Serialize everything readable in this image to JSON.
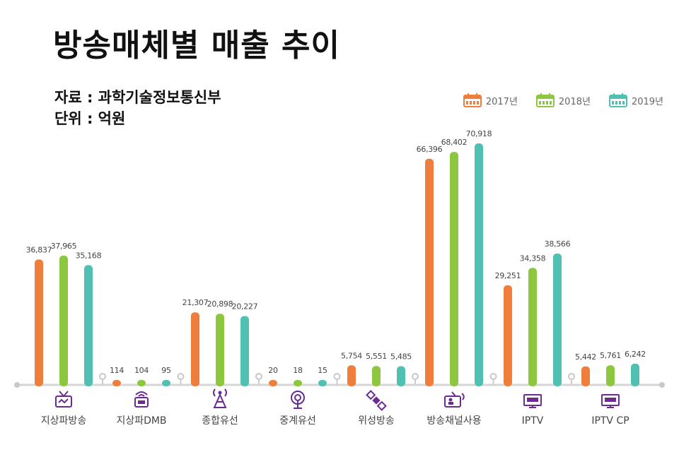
{
  "header": {
    "title": "방송매체별 매출 추이",
    "source": "자료 : 과학기술정보통신부",
    "unit": "단위 : 억원"
  },
  "legend": [
    {
      "label": "2017년",
      "color": "#ef7d3c",
      "icon": "calendar-icon"
    },
    {
      "label": "2018년",
      "color": "#8dc63f",
      "icon": "calendar-icon"
    },
    {
      "label": "2019년",
      "color": "#4fc0b2",
      "icon": "calendar-icon"
    }
  ],
  "chart_data": {
    "type": "bar",
    "title": "방송매체별 매출 추이",
    "categories": [
      "지상파방송",
      "지상파DMB",
      "종합유선",
      "중계유선",
      "위성방송",
      "방송채널사용",
      "IPTV",
      "IPTV CP"
    ],
    "category_icons": [
      "tv-icon",
      "dmb-device-icon",
      "antenna-tower-icon",
      "broadcast-signal-icon",
      "satellite-icon",
      "channel-screen-icon",
      "iptv-monitor-icon",
      "iptv-cp-monitor-icon"
    ],
    "series": [
      {
        "name": "2017년",
        "color": "#ef7d3c",
        "values": [
          36837,
          114,
          21307,
          20,
          5754,
          66396,
          29251,
          5442
        ],
        "labels": [
          "36,837",
          "114",
          "21,307",
          "20",
          "5,754",
          "66,396",
          "29,251",
          "5,442"
        ]
      },
      {
        "name": "2018년",
        "color": "#8dc63f",
        "values": [
          37965,
          104,
          20898,
          18,
          5551,
          68402,
          34358,
          5761
        ],
        "labels": [
          "37,965",
          "104",
          "20,898",
          "18",
          "5,551",
          "68,402",
          "34,358",
          "5,761"
        ]
      },
      {
        "name": "2019년",
        "color": "#4fc0b2",
        "values": [
          35168,
          95,
          20227,
          15,
          5485,
          70918,
          38566,
          6242
        ],
        "labels": [
          "35,168",
          "95",
          "20,227",
          "15",
          "5,485",
          "70,918",
          "38,566",
          "6,242"
        ]
      }
    ],
    "xlabel": "",
    "ylabel": "",
    "ylim": [
      0,
      72000
    ],
    "grid": false,
    "legend_position": "top-right"
  }
}
